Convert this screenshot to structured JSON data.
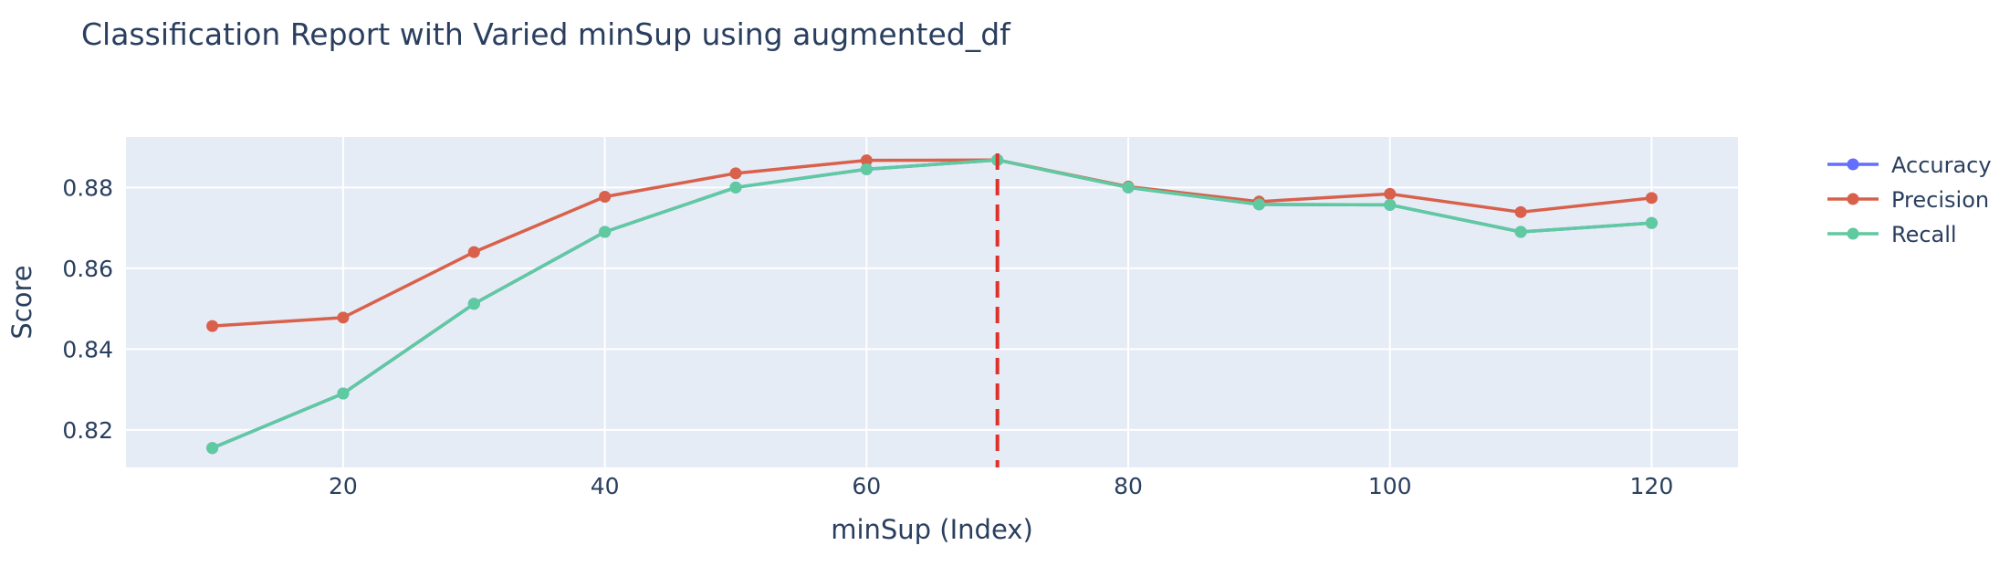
{
  "chart_data": {
    "type": "line",
    "title": "Classification Report with Varied minSup using augmented_df",
    "xlabel": "minSup (Index)",
    "ylabel": "Score",
    "x": [
      10,
      20,
      30,
      40,
      50,
      60,
      70,
      80,
      90,
      100,
      110,
      120
    ],
    "xticks": [
      20,
      40,
      60,
      80,
      100,
      120
    ],
    "xtick_labels": [
      "20",
      "40",
      "60",
      "80",
      "100",
      "120"
    ],
    "yticks": [
      0.82,
      0.84,
      0.86,
      0.88
    ],
    "ytick_labels": [
      "0.82",
      "0.84",
      "0.86",
      "0.88"
    ],
    "xlim": [
      3.4,
      126.6
    ],
    "ylim": [
      0.8107,
      0.8925
    ],
    "grid": true,
    "legend_position": "top-right",
    "series": [
      {
        "name": "Accuracy",
        "color": "#636efa",
        "values": [
          0.8155,
          0.829,
          0.8512,
          0.869,
          0.88,
          0.8845,
          0.8868,
          0.88,
          0.8758,
          0.8757,
          0.869,
          0.8712
        ]
      },
      {
        "name": "Precision",
        "color": "#d9604a",
        "values": [
          0.8457,
          0.8478,
          0.864,
          0.8777,
          0.8835,
          0.8867,
          0.8868,
          0.8802,
          0.8765,
          0.8784,
          0.8739,
          0.8774
        ]
      },
      {
        "name": "Recall",
        "color": "#5fc9a0",
        "values": [
          0.8155,
          0.829,
          0.8512,
          0.869,
          0.88,
          0.8845,
          0.8868,
          0.88,
          0.8758,
          0.8757,
          0.869,
          0.8712
        ]
      }
    ],
    "vline": {
      "x": 70,
      "color": "#e0302a",
      "dash": "dashed"
    }
  }
}
